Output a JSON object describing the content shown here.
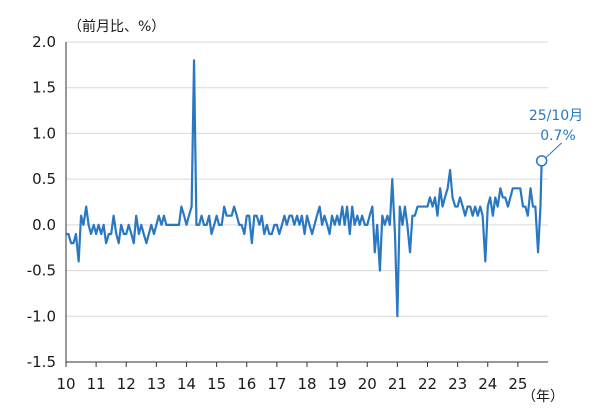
{
  "chart_data": {
    "type": "line",
    "unit_label": "（前月比、%）",
    "year_unit": "（年）",
    "ylim": [
      -1.5,
      2.0
    ],
    "yticks": [
      "2.0",
      "1.5",
      "1.0",
      "0.5",
      "0.0",
      "-0.5",
      "-1.0",
      "-1.5"
    ],
    "yticks_values": [
      2.0,
      1.5,
      1.0,
      0.5,
      0.0,
      -0.5,
      -1.0,
      -1.5
    ],
    "xlim": [
      2010,
      2026
    ],
    "xticks": [
      "10",
      "11",
      "12",
      "13",
      "14",
      "15",
      "16",
      "17",
      "18",
      "19",
      "20",
      "21",
      "22",
      "23",
      "24",
      "25"
    ],
    "xticks_values": [
      2010,
      2011,
      2012,
      2013,
      2014,
      2015,
      2016,
      2017,
      2018,
      2019,
      2020,
      2021,
      2022,
      2023,
      2024,
      2025
    ],
    "grid": true,
    "line_color": "#2a78c2",
    "annotation": {
      "date": "25/10月",
      "value_label": "0.7%",
      "x": 2025.79,
      "y": 0.7
    },
    "series": [
      {
        "x": [
          2010.0,
          2010.08,
          2010.17,
          2010.25,
          2010.33,
          2010.42,
          2010.5,
          2010.58,
          2010.67,
          2010.75,
          2010.83,
          2010.92,
          2011.0,
          2011.08,
          2011.17,
          2011.25,
          2011.33,
          2011.42,
          2011.5,
          2011.58,
          2011.67,
          2011.75,
          2011.83,
          2011.92,
          2012.0,
          2012.08,
          2012.17,
          2012.25,
          2012.33,
          2012.42,
          2012.5,
          2012.58,
          2012.67,
          2012.75,
          2012.83,
          2012.92,
          2013.0,
          2013.08,
          2013.17,
          2013.25,
          2013.33,
          2013.42,
          2013.5,
          2013.58,
          2013.67,
          2013.75,
          2013.83,
          2013.92,
          2014.0,
          2014.08,
          2014.17,
          2014.25,
          2014.33,
          2014.42,
          2014.5,
          2014.58,
          2014.67,
          2014.75,
          2014.83,
          2014.92,
          2015.0,
          2015.08,
          2015.17,
          2015.25,
          2015.33,
          2015.42,
          2015.5,
          2015.58,
          2015.67,
          2015.75,
          2015.83,
          2015.92,
          2016.0,
          2016.08,
          2016.17,
          2016.25,
          2016.33,
          2016.42,
          2016.5,
          2016.58,
          2016.67,
          2016.75,
          2016.83,
          2016.92,
          2017.0,
          2017.08,
          2017.17,
          2017.25,
          2017.33,
          2017.42,
          2017.5,
          2017.58,
          2017.67,
          2017.75,
          2017.83,
          2017.92,
          2018.0,
          2018.08,
          2018.17,
          2018.25,
          2018.33,
          2018.42,
          2018.5,
          2018.58,
          2018.67,
          2018.75,
          2018.83,
          2018.92,
          2019.0,
          2019.08,
          2019.17,
          2019.25,
          2019.33,
          2019.42,
          2019.5,
          2019.58,
          2019.67,
          2019.75,
          2019.83,
          2019.92,
          2020.0,
          2020.08,
          2020.17,
          2020.25,
          2020.33,
          2020.42,
          2020.5,
          2020.58,
          2020.67,
          2020.75,
          2020.83,
          2020.92,
          2021.0,
          2021.08,
          2021.17,
          2021.25,
          2021.33,
          2021.42,
          2021.5,
          2021.58,
          2021.67,
          2021.75,
          2021.83,
          2021.92,
          2022.0,
          2022.08,
          2022.17,
          2022.25,
          2022.33,
          2022.42,
          2022.5,
          2022.58,
          2022.67,
          2022.75,
          2022.83,
          2022.92,
          2023.0,
          2023.08,
          2023.17,
          2023.25,
          2023.33,
          2023.42,
          2023.5,
          2023.58,
          2023.67,
          2023.75,
          2023.83,
          2023.92,
          2024.0,
          2024.08,
          2024.17,
          2024.25,
          2024.33,
          2024.42,
          2024.5,
          2024.58,
          2024.67,
          2024.75,
          2024.83,
          2024.92,
          2025.0,
          2025.08,
          2025.17,
          2025.25,
          2025.33,
          2025.42,
          2025.5,
          2025.58,
          2025.67,
          2025.75,
          2025.79
        ],
        "y": [
          -0.1,
          -0.1,
          -0.2,
          -0.2,
          -0.1,
          -0.4,
          0.1,
          0.0,
          0.2,
          0.0,
          -0.1,
          0.0,
          -0.1,
          0.0,
          -0.1,
          0.0,
          -0.2,
          -0.1,
          -0.1,
          0.1,
          -0.1,
          -0.2,
          0.0,
          -0.1,
          -0.1,
          0.0,
          -0.1,
          -0.2,
          0.1,
          -0.1,
          0.0,
          -0.1,
          -0.2,
          -0.1,
          0.0,
          -0.1,
          0.0,
          0.1,
          0.0,
          0.1,
          0.0,
          0.0,
          0.0,
          0.0,
          0.0,
          0.0,
          0.2,
          0.1,
          0.0,
          0.1,
          0.2,
          1.8,
          0.0,
          0.0,
          0.1,
          0.0,
          0.0,
          0.1,
          -0.1,
          0.0,
          0.1,
          0.0,
          0.0,
          0.2,
          0.1,
          0.1,
          0.1,
          0.2,
          0.1,
          0.0,
          0.0,
          -0.1,
          0.1,
          0.1,
          -0.2,
          0.1,
          0.1,
          0.0,
          0.1,
          -0.1,
          0.0,
          -0.1,
          -0.1,
          0.0,
          0.0,
          -0.1,
          0.0,
          0.1,
          0.0,
          0.1,
          0.1,
          0.0,
          0.1,
          0.0,
          0.1,
          -0.1,
          0.1,
          0.0,
          -0.1,
          0.0,
          0.1,
          0.2,
          0.0,
          0.1,
          0.0,
          -0.1,
          0.1,
          0.0,
          0.1,
          0.0,
          0.2,
          0.0,
          0.2,
          -0.1,
          0.2,
          0.0,
          0.1,
          0.0,
          0.1,
          0.0,
          0.0,
          0.1,
          0.2,
          -0.3,
          0.0,
          -0.5,
          0.1,
          0.0,
          0.1,
          0.0,
          0.5,
          -0.1,
          -1.0,
          0.2,
          0.0,
          0.2,
          0.0,
          -0.3,
          0.1,
          0.1,
          0.2,
          0.2,
          0.2,
          0.2,
          0.2,
          0.3,
          0.2,
          0.3,
          0.1,
          0.4,
          0.2,
          0.3,
          0.4,
          0.6,
          0.3,
          0.2,
          0.2,
          0.3,
          0.2,
          0.1,
          0.2,
          0.2,
          0.1,
          0.2,
          0.1,
          0.2,
          0.1,
          -0.4,
          0.2,
          0.3,
          0.1,
          0.3,
          0.2,
          0.4,
          0.3,
          0.3,
          0.2,
          0.3,
          0.4,
          0.4,
          0.4,
          0.4,
          0.2,
          0.2,
          0.1,
          0.4,
          0.2,
          0.2,
          -0.3,
          0.2,
          0.7
        ]
      }
    ]
  }
}
